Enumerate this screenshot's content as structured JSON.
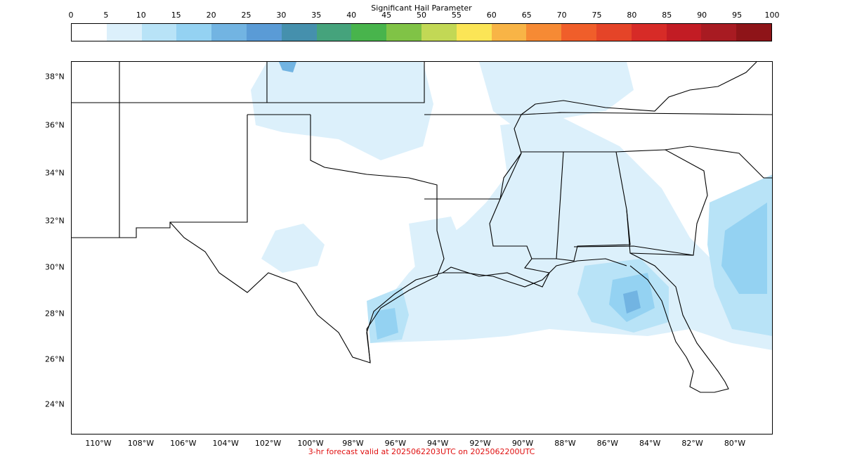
{
  "colorbar": {
    "title": "Significant Hail Parameter",
    "ticks": [
      "0",
      "5",
      "10",
      "15",
      "20",
      "25",
      "30",
      "35",
      "40",
      "45",
      "50",
      "55",
      "60",
      "65",
      "70",
      "75",
      "80",
      "85",
      "90",
      "95",
      "100"
    ],
    "colors": [
      "#ffffff",
      "#dcf0fb",
      "#b8e3f7",
      "#94d2f2",
      "#72b4e2",
      "#5a9bd6",
      "#4590ad",
      "#45a37c",
      "#48b44c",
      "#80c346",
      "#c2d855",
      "#fbe556",
      "#f8b446",
      "#f68a34",
      "#f05e2a",
      "#e54428",
      "#d72b27",
      "#c21c24",
      "#a81b22",
      "#8e1418"
    ]
  },
  "map": {
    "lat_labels": [
      "38°N",
      "36°N",
      "34°N",
      "32°N",
      "30°N",
      "28°N",
      "26°N",
      "24°N"
    ],
    "lon_labels": [
      "110°W",
      "108°W",
      "106°W",
      "104°W",
      "102°W",
      "100°W",
      "98°W",
      "96°W",
      "94°W",
      "92°W",
      "90°W",
      "88°W",
      "86°W",
      "84°W",
      "82°W",
      "80°W"
    ],
    "line_color": "#000000",
    "fill_light": "#dcf0fb",
    "fill_mid": "#b8e3f7",
    "fill_high": "#94d2f2",
    "fill_peak": "#72b4e2"
  },
  "caption": {
    "text": "3-hr forecast valid at 2025062203UTC on 2025062200UTC",
    "color": "#e01010"
  }
}
